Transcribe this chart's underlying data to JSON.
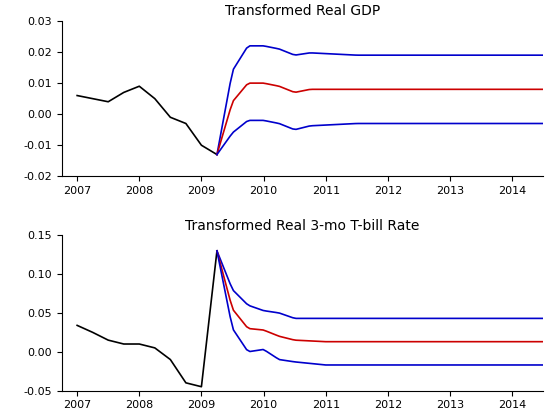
{
  "title1": "Transformed Real GDP",
  "title2": "Transformed Real 3-mo T-bill Rate",
  "gdp": {
    "xlim": [
      2006.75,
      2014.5
    ],
    "ylim": [
      -0.02,
      0.03
    ],
    "yticks": [
      -0.02,
      -0.01,
      0,
      0.01,
      0.02,
      0.03
    ],
    "xticks": [
      2007,
      2008,
      2009,
      2010,
      2011,
      2012,
      2013,
      2014
    ]
  },
  "tbill": {
    "xlim": [
      2006.75,
      2014.5
    ],
    "ylim": [
      -0.05,
      0.15
    ],
    "yticks": [
      -0.05,
      0,
      0.05,
      0.1,
      0.15
    ],
    "xticks": [
      2007,
      2008,
      2009,
      2010,
      2011,
      2012,
      2013,
      2014
    ]
  },
  "black_color": "#000000",
  "red_color": "#cc0000",
  "blue_color": "#0000cc",
  "linewidth": 1.2,
  "background": "#ffffff",
  "gdp_hist_x": [
    2007.0,
    2007.25,
    2007.5,
    2007.75,
    2008.0,
    2008.25,
    2008.5,
    2008.75,
    2009.0,
    2009.25
  ],
  "gdp_hist_y": [
    0.006,
    0.005,
    0.004,
    0.007,
    0.009,
    0.005,
    -0.001,
    -0.003,
    -0.01,
    -0.013
  ],
  "gdp_red_x": [
    2009.25,
    2009.5,
    2009.75,
    2010.0,
    2010.25,
    2010.5,
    2010.75,
    2011.0,
    2011.5,
    2012.0,
    2012.5,
    2013.0,
    2013.5,
    2014.0,
    2014.5
  ],
  "gdp_red_y": [
    -0.013,
    0.004,
    0.01,
    0.01,
    0.009,
    0.007,
    0.008,
    0.008,
    0.008,
    0.008,
    0.008,
    0.008,
    0.008,
    0.008,
    0.008
  ],
  "gdp_off_x": [
    2009.25,
    2009.5,
    2009.75,
    2010.0,
    2010.5,
    2011.5,
    2014.5
  ],
  "gdp_off_y": [
    0.0,
    0.01,
    0.012,
    0.012,
    0.012,
    0.011,
    0.011
  ],
  "tbill_hist_x": [
    2007.0,
    2007.25,
    2007.5,
    2007.75,
    2008.0,
    2008.25,
    2008.5,
    2008.75,
    2009.0,
    2009.25
  ],
  "tbill_hist_y": [
    0.034,
    0.025,
    0.015,
    0.01,
    0.01,
    0.005,
    -0.01,
    -0.04,
    -0.045,
    0.13
  ],
  "tbill_red_x": [
    2009.25,
    2009.5,
    2009.75,
    2010.0,
    2010.25,
    2010.5,
    2010.75,
    2011.0,
    2011.5,
    2012.0,
    2012.5,
    2013.0,
    2013.5,
    2014.0,
    2014.5
  ],
  "tbill_red_y": [
    0.13,
    0.055,
    0.03,
    0.028,
    0.02,
    0.015,
    0.014,
    0.013,
    0.013,
    0.013,
    0.013,
    0.013,
    0.013,
    0.013,
    0.013
  ],
  "tbill_off_x": [
    2009.25,
    2009.5,
    2009.75,
    2010.0,
    2010.25,
    2010.5,
    2011.0,
    2011.5,
    2014.5
  ],
  "tbill_off_y": [
    0.0,
    0.025,
    0.03,
    0.025,
    0.03,
    0.028,
    0.03,
    0.03,
    0.03
  ]
}
